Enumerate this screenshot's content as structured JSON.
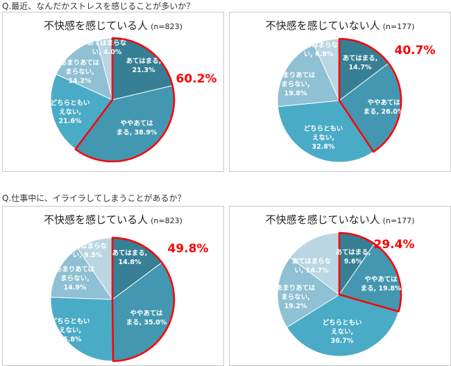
{
  "chart_data": [
    {
      "type": "pie",
      "question": "Q.最近、なんだかストレスを感じることが多いか？",
      "title": "不快感を感じている人",
      "n": "(n=823)",
      "slices": [
        {
          "label": "あてはまる,",
          "value": 21.3
        },
        {
          "label": "ややあてはまる,",
          "value": 38.9
        },
        {
          "label": "どちらともいえない,",
          "value": 21.6
        },
        {
          "label": "あまりあてはまらない,",
          "value": 14.2
        },
        {
          "label": "あてはまらない,",
          "value": 4.0
        }
      ],
      "highlight": "60.2%"
    },
    {
      "type": "pie",
      "title": "不快感を感じていない人",
      "n": "(n=177)",
      "slices": [
        {
          "label": "あてはまる,",
          "value": 14.7
        },
        {
          "label": "ややあてはまる,",
          "value": 26.0
        },
        {
          "label": "どちらともいえない,",
          "value": 32.8
        },
        {
          "label": "あまりあてはまらない,",
          "value": 19.8
        },
        {
          "label": "あてはまらない,",
          "value": 6.8
        }
      ],
      "highlight": "40.7%"
    },
    {
      "type": "pie",
      "question": "Q.仕事中に、イライラしてしまうことがあるか？",
      "title": "不快感を感じている人",
      "n": "(n=823)",
      "slices": [
        {
          "label": "あてはまる,",
          "value": 14.8
        },
        {
          "label": "ややあてはまる,",
          "value": 35.0
        },
        {
          "label": "どちらともいえない,",
          "value": 25.8
        },
        {
          "label": "あまりあてはまらない,",
          "value": 14.9
        },
        {
          "label": "あてはまらない,",
          "value": 9.5
        }
      ],
      "highlight": "49.8%"
    },
    {
      "type": "pie",
      "title": "不快感を感じていない人",
      "n": "(n=177)",
      "slices": [
        {
          "label": "あてはまる,",
          "value": 9.6
        },
        {
          "label": "ややあてはまる,",
          "value": 19.8
        },
        {
          "label": "どちらともいえない,",
          "value": 36.7
        },
        {
          "label": "あまりあてはまらない,",
          "value": 19.2
        },
        {
          "label": "あてはまらない,",
          "value": 14.7
        }
      ],
      "highlight": "29.4%"
    }
  ],
  "colors": [
    "#367f94",
    "#4397b0",
    "#4aabc6",
    "#8fc0d3",
    "#b9d6e2"
  ],
  "highlight_color": "#ff0000"
}
